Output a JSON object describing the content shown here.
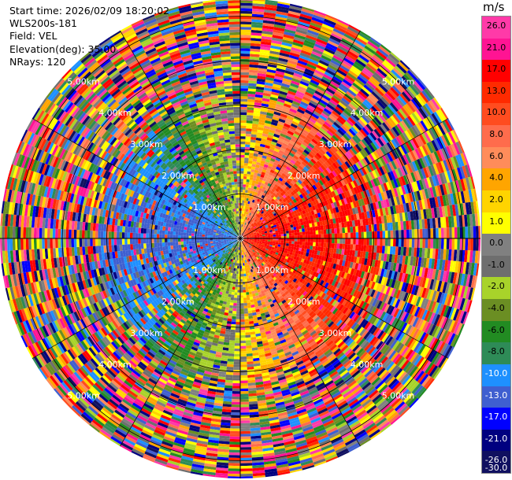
{
  "header": {
    "start_time": "Start time: 2026/02/09 18:20:02",
    "instrument": "WLS200s-181",
    "field": "Field: VEL",
    "elevation": "Elevation(deg): 35.00",
    "nrays": "NRays: 120"
  },
  "colorbar": {
    "unit": "m/s",
    "levels": [
      "26.0",
      "21.0",
      "17.0",
      "13.0",
      "10.0",
      "8.0",
      "6.0",
      "4.0",
      "2.0",
      "1.0",
      "0.0",
      "-1.0",
      "-2.0",
      "-4.0",
      "-6.0",
      "-8.0",
      "-10.0",
      "-13.0",
      "-17.0",
      "-21.0",
      "-26.0",
      "-30.0"
    ],
    "colors": [
      "#ff3aa8",
      "#ff1493",
      "#ff0000",
      "#ff2a00",
      "#ff4c1f",
      "#ff6c4c",
      "#ff8c5a",
      "#ffa500",
      "#ffd400",
      "#ffff00",
      "#808080",
      "#6e6e6e",
      "#a8d32a",
      "#6b8e23",
      "#228b22",
      "#2e8b57",
      "#1e90ff",
      "#3f5fd0",
      "#0000ff",
      "#000080",
      "#101060"
    ]
  },
  "chart_data": {
    "type": "heatmap",
    "projection": "polar",
    "field": "VEL",
    "units": "m/s",
    "elevation_deg": 35.0,
    "n_rays": 120,
    "range_rings_km": [
      1,
      2,
      3,
      4,
      5
    ],
    "ring_labels": [
      "1.00km",
      "2.00km",
      "3.00km",
      "4.00km",
      "5.00km"
    ],
    "max_range_km": 5.4,
    "gate_km": 0.06,
    "grid": true,
    "color_range": [
      -30,
      26
    ]
  }
}
